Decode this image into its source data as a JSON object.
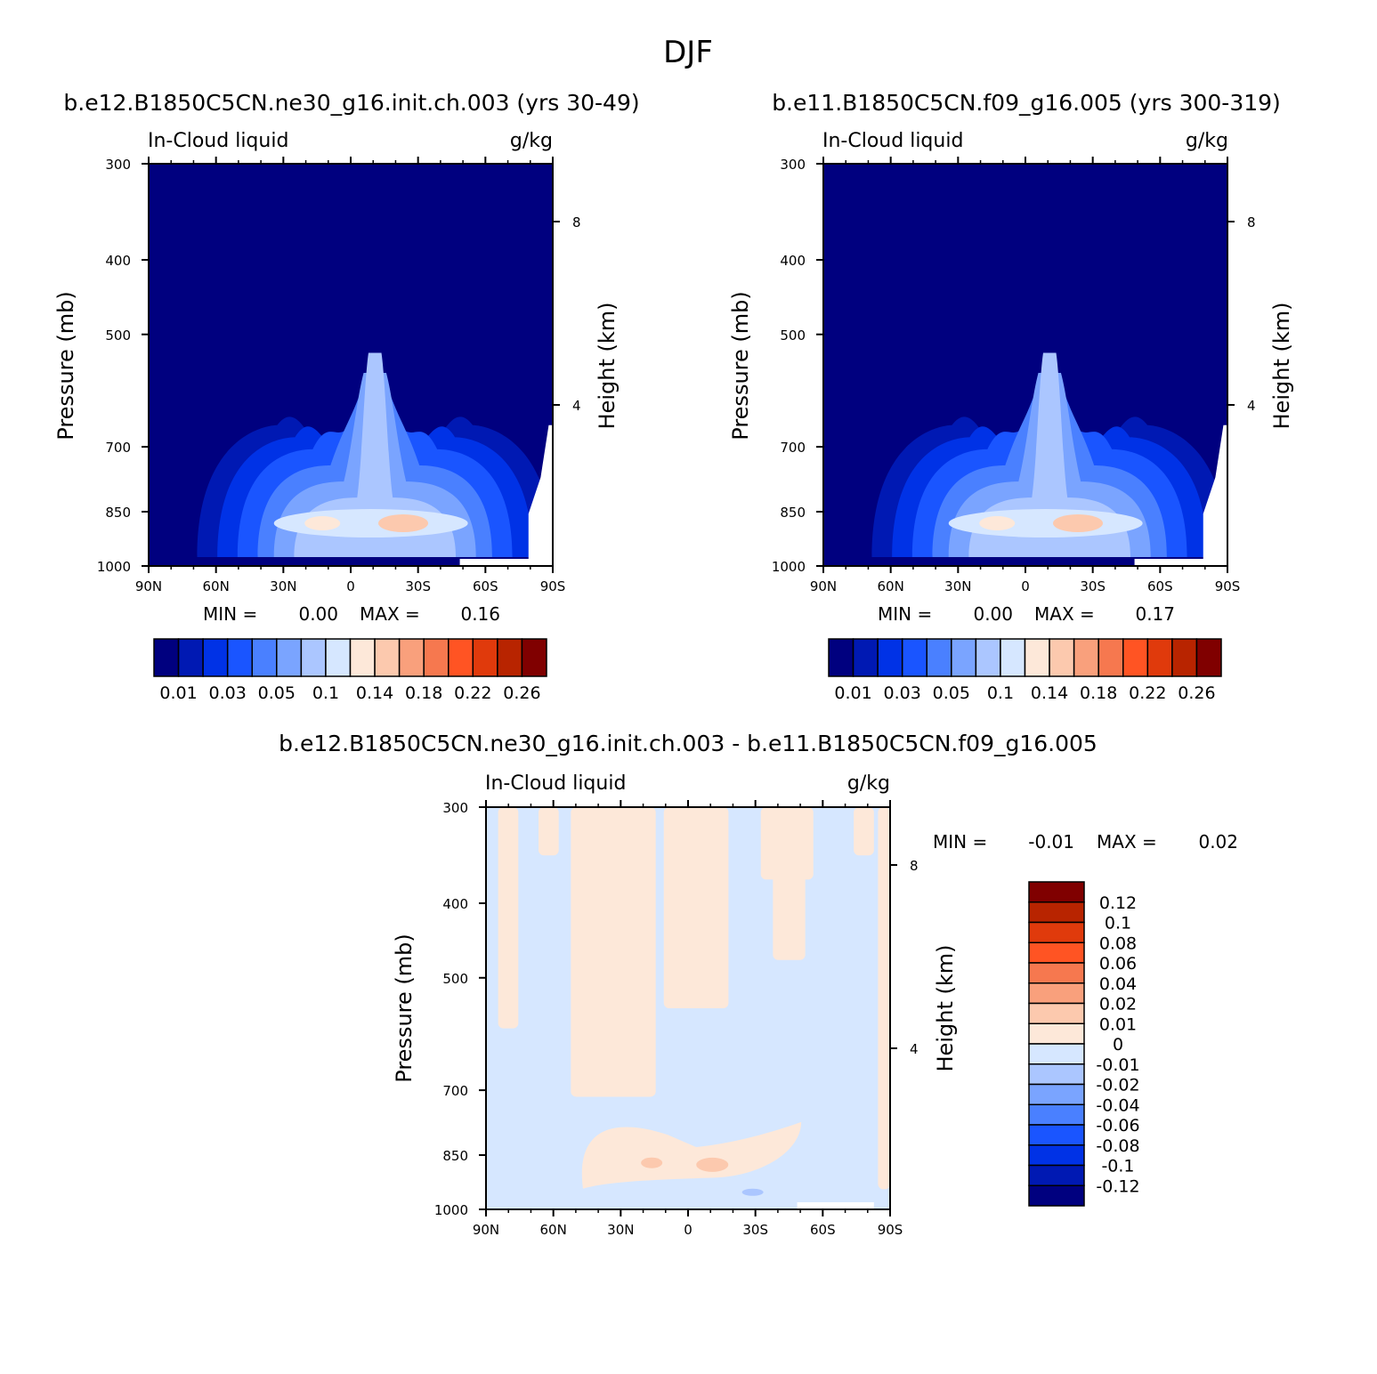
{
  "figure_title": "DJF",
  "colors": {
    "model_levels_fill": [
      "#00007f",
      "#0019b3",
      "#0032e6",
      "#1a55ff",
      "#4a80ff",
      "#7aa4ff",
      "#abc6ff",
      "#d6e7ff",
      "#fde8d9",
      "#fcc9ae",
      "#f9a07c",
      "#f6784f",
      "#ff5423",
      "#e03a0c",
      "#b82400",
      "#800000"
    ],
    "diff_levels_fill": [
      "#00007f",
      "#0019b3",
      "#0032e6",
      "#1a55ff",
      "#4a80ff",
      "#7aa4ff",
      "#abc6ff",
      "#d6e7ff",
      "#fde8d9",
      "#fcc9ae",
      "#f9a07c",
      "#f6784f",
      "#ff5423",
      "#e03a0c",
      "#b82400",
      "#800000"
    ]
  },
  "chart_data": [
    {
      "type": "heatmap",
      "title": "b.e12.B1850C5CN.ne30_g16.init.ch.003 (yrs 30-49)",
      "left_string": "In-Cloud liquid",
      "right_string": "g/kg",
      "xlabel": "",
      "ylabel": "Pressure (mb)",
      "y2label": "Height (km)",
      "x_ticks": [
        "90N",
        "60N",
        "30N",
        "0",
        "30S",
        "60S",
        "90S"
      ],
      "y_ticks": [
        "300",
        "400",
        "500",
        "700",
        "850",
        "1000"
      ],
      "y2_ticks": [
        "8",
        "4"
      ],
      "min_label": "MIN =",
      "min_value": "0.00",
      "max_label": "MAX =",
      "max_value": "0.16",
      "colorbar_labels": [
        "0.01",
        "0.03",
        "0.05",
        "0.1",
        "0.14",
        "0.18",
        "0.22",
        "0.26"
      ]
    },
    {
      "type": "heatmap",
      "title": "b.e11.B1850C5CN.f09_g16.005 (yrs 300-319)",
      "left_string": "In-Cloud liquid",
      "right_string": "g/kg",
      "xlabel": "",
      "ylabel": "Pressure (mb)",
      "y2label": "Height (km)",
      "x_ticks": [
        "90N",
        "60N",
        "30N",
        "0",
        "30S",
        "60S",
        "90S"
      ],
      "y_ticks": [
        "300",
        "400",
        "500",
        "700",
        "850",
        "1000"
      ],
      "y2_ticks": [
        "8",
        "4"
      ],
      "min_label": "MIN =",
      "min_value": "0.00",
      "max_label": "MAX =",
      "max_value": "0.17",
      "colorbar_labels": [
        "0.01",
        "0.03",
        "0.05",
        "0.1",
        "0.14",
        "0.18",
        "0.22",
        "0.26"
      ]
    },
    {
      "type": "heatmap",
      "title": "b.e12.B1850C5CN.ne30_g16.init.ch.003 - b.e11.B1850C5CN.f09_g16.005",
      "left_string": "In-Cloud liquid",
      "right_string": "g/kg",
      "xlabel": "",
      "ylabel": "Pressure (mb)",
      "y2label": "Height (km)",
      "x_ticks": [
        "90N",
        "60N",
        "30N",
        "0",
        "30S",
        "60S",
        "90S"
      ],
      "y_ticks": [
        "300",
        "400",
        "500",
        "700",
        "850",
        "1000"
      ],
      "y2_ticks": [
        "8",
        "4"
      ],
      "min_label": "MIN =",
      "min_value": "-0.01",
      "max_label": "MAX =",
      "max_value": "0.02",
      "colorbar_labels": [
        "0.12",
        "0.1",
        "0.08",
        "0.06",
        "0.04",
        "0.02",
        "0.01",
        "0",
        "-0.01",
        "-0.02",
        "-0.04",
        "-0.06",
        "-0.08",
        "-0.1",
        "-0.12"
      ]
    }
  ]
}
